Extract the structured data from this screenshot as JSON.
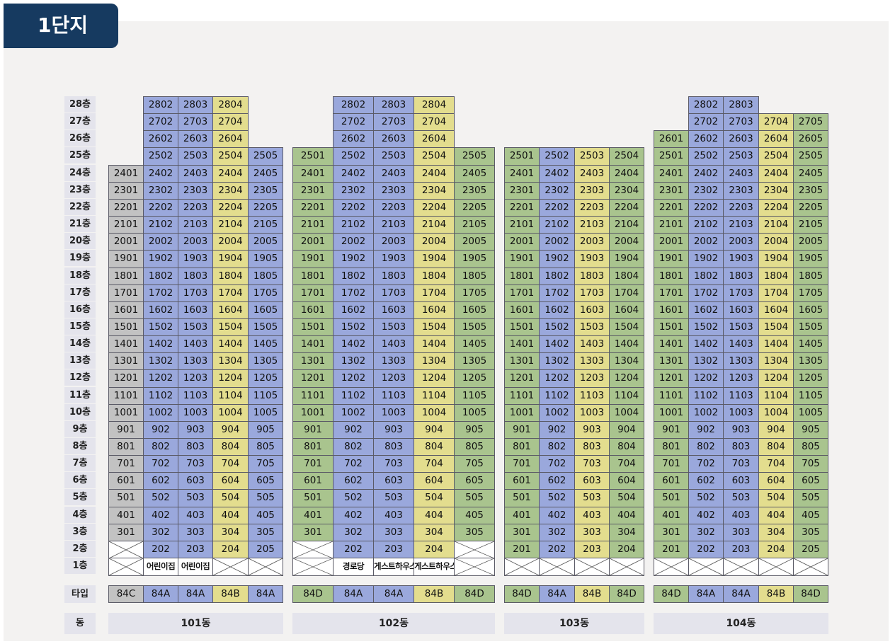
{
  "title": "1단지",
  "floor_suffix": "층",
  "type_label": "타입",
  "dong_label": "동",
  "colors": {
    "blue": "#9aa8dc",
    "yellow": "#e3dd8e",
    "green": "#a9c48e",
    "gray": "#c2c2c2",
    "header": "#163a60"
  },
  "buildings": [
    {
      "name": "101동",
      "lines": [
        {
          "line": "01",
          "type": "84C",
          "color": "gray",
          "max_floor": 24,
          "floor2": "empty",
          "floor1": "empty"
        },
        {
          "line": "02",
          "type": "84A",
          "color": "blue",
          "max_floor": 28,
          "floor1": "어린이집"
        },
        {
          "line": "03",
          "type": "84A",
          "color": "blue",
          "max_floor": 28,
          "floor1": "어린이집"
        },
        {
          "line": "04",
          "type": "84B",
          "color": "yellow",
          "max_floor": 28,
          "floor1": "empty"
        },
        {
          "line": "05",
          "type": "84A",
          "color": "blue",
          "max_floor": 25,
          "floor1": "empty"
        }
      ]
    },
    {
      "name": "102동",
      "lines": [
        {
          "line": "01",
          "type": "84D",
          "color": "green",
          "max_floor": 25,
          "floor2": "empty",
          "floor1": "empty"
        },
        {
          "line": "02",
          "type": "84A",
          "color": "blue",
          "max_floor": 28,
          "floor1": "경로당"
        },
        {
          "line": "03",
          "type": "84A",
          "color": "blue",
          "max_floor": 28,
          "floor1": "게스트하우스"
        },
        {
          "line": "04",
          "type": "84B",
          "color": "yellow",
          "max_floor": 28,
          "floor1": "게스트하우스"
        },
        {
          "line": "05",
          "type": "84D",
          "color": "green",
          "max_floor": 25,
          "floor2": "empty",
          "floor1": "empty"
        }
      ]
    },
    {
      "name": "103동",
      "lines": [
        {
          "line": "01",
          "type": "84D",
          "color": "green",
          "max_floor": 25,
          "floor1": "empty"
        },
        {
          "line": "02",
          "type": "84A",
          "color": "blue",
          "max_floor": 25,
          "floor1": "empty"
        },
        {
          "line": "03",
          "type": "84B",
          "color": "yellow",
          "max_floor": 25,
          "floor1": "empty"
        },
        {
          "line": "04",
          "type": "84D",
          "color": "green",
          "max_floor": 25,
          "floor1": "empty"
        }
      ]
    },
    {
      "name": "104동",
      "lines": [
        {
          "line": "01",
          "type": "84D",
          "color": "green",
          "max_floor": 26,
          "floor1": "empty"
        },
        {
          "line": "02",
          "type": "84A",
          "color": "blue",
          "max_floor": 28,
          "floor1": "empty"
        },
        {
          "line": "03",
          "type": "84A",
          "color": "blue",
          "max_floor": 28,
          "floor1": "empty"
        },
        {
          "line": "04",
          "type": "84B",
          "color": "yellow",
          "max_floor": 27,
          "floor1": "empty"
        },
        {
          "line": "05",
          "type": "84D",
          "color": "green",
          "max_floor": 27,
          "floor1": "empty"
        }
      ]
    }
  ]
}
